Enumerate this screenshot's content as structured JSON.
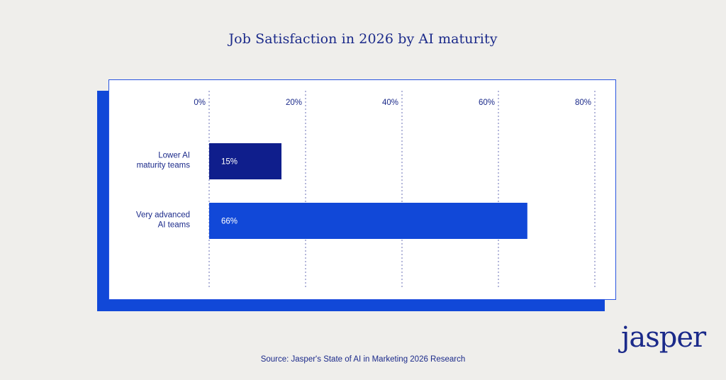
{
  "page": {
    "background": "#efeeeb",
    "title": "Job Satisfaction in 2026 by AI maturity",
    "source": "Source: Jasper's State of AI in Marketing 2026 Research",
    "brand": "jasper"
  },
  "colors": {
    "title": "#1b2a8a",
    "accent": "#1148d8",
    "bar_low": "#0f1e8c",
    "bar_high": "#1148d8",
    "grid": "#6a6fb5"
  },
  "chart_data": {
    "type": "bar",
    "orientation": "horizontal",
    "title": "Job Satisfaction in 2026 by AI maturity",
    "categories": [
      "Lower AI maturity teams",
      "Very advanced AI teams"
    ],
    "category_lines": [
      [
        "Lower AI",
        "maturity teams"
      ],
      [
        "Very advanced",
        "AI teams"
      ]
    ],
    "values": [
      15,
      66
    ],
    "value_labels": [
      "15%",
      "66%"
    ],
    "xlim": [
      0,
      80
    ],
    "xticks": [
      0,
      20,
      40,
      60,
      80
    ],
    "xtick_labels": [
      "0%",
      "20%",
      "40%",
      "60%",
      "80%"
    ],
    "grid": true,
    "xlabel": "",
    "ylabel": ""
  }
}
